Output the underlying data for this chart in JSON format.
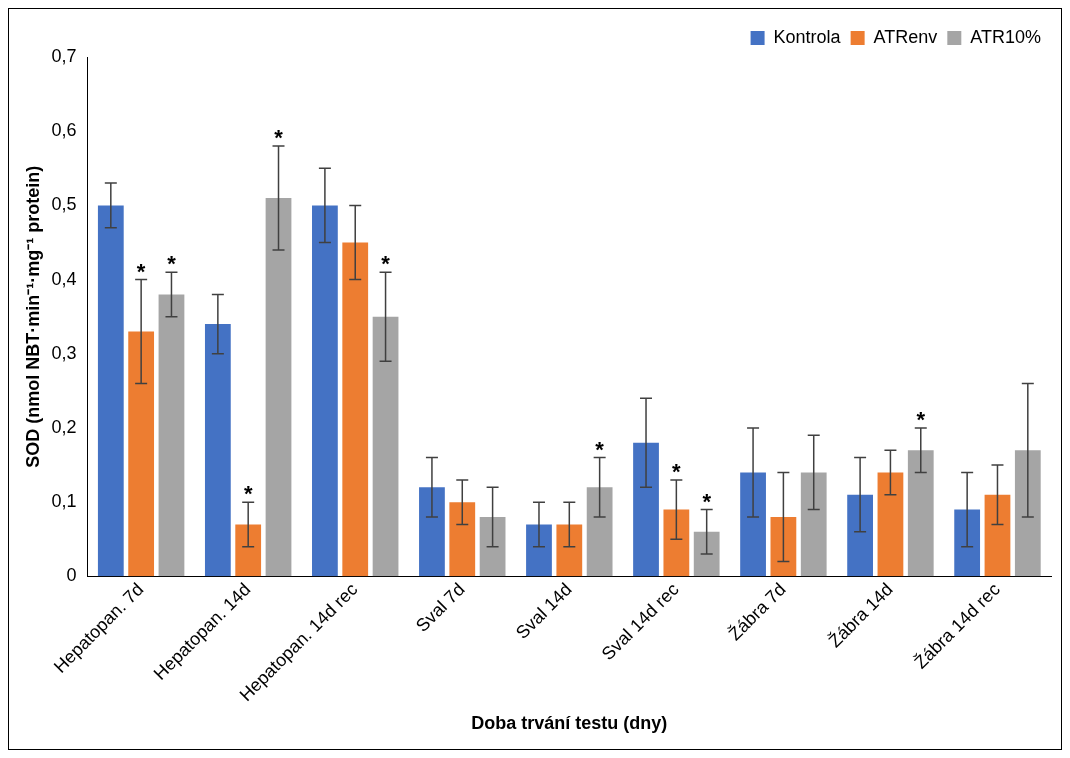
{
  "chart_data": {
    "type": "bar",
    "xlabel": "Doba trvání testu (dny)",
    "ylabel": "SOD (nmol NBT·min⁻¹·mg⁻¹ protein)",
    "categories": [
      "Hepatopan. 7d",
      "Hepatopan. 14d",
      "Hepatopan. 14d rec",
      "Sval 7d",
      "Sval 14d",
      "Sval 14d rec",
      "Žábra 7d",
      "Žábra 14d",
      "Žábra 14d rec"
    ],
    "series": [
      {
        "name": "Kontrola",
        "color": "#4472c4",
        "values": [
          0.5,
          0.34,
          0.5,
          0.12,
          0.07,
          0.18,
          0.14,
          0.11,
          0.09
        ],
        "errors": [
          0.03,
          0.04,
          0.05,
          0.04,
          0.03,
          0.06,
          0.06,
          0.05,
          0.05
        ],
        "value_labels": [
          null,
          null,
          null,
          null,
          null,
          null,
          null,
          null,
          null
        ]
      },
      {
        "name": "ATRenv",
        "color": "#ed7d31",
        "values": [
          0.33,
          0.07,
          0.45,
          0.1,
          0.07,
          0.09,
          0.08,
          0.14,
          0.11
        ],
        "errors": [
          0.07,
          0.03,
          0.05,
          0.03,
          0.03,
          0.04,
          0.06,
          0.03,
          0.04
        ],
        "value_labels": [
          "*",
          "*",
          null,
          null,
          null,
          "*",
          null,
          null,
          null
        ]
      },
      {
        "name": "ATR10%",
        "color": "#a5a5a5",
        "values": [
          0.38,
          0.51,
          0.35,
          0.08,
          0.12,
          0.06,
          0.14,
          0.17,
          0.17
        ],
        "errors": [
          0.03,
          0.07,
          0.06,
          0.04,
          0.04,
          0.03,
          0.05,
          0.03,
          0.09
        ],
        "value_labels": [
          "*",
          "*",
          "*",
          null,
          "*",
          "*",
          null,
          "*",
          null
        ]
      }
    ],
    "ylim": [
      0,
      0.7
    ],
    "yticks": [
      {
        "value": 0,
        "label": "0"
      },
      {
        "value": 0.1,
        "label": "0,1"
      },
      {
        "value": 0.2,
        "label": "0,2"
      },
      {
        "value": 0.3,
        "label": "0,3"
      },
      {
        "value": 0.4,
        "label": "0,4"
      },
      {
        "value": 0.5,
        "label": "0,5"
      },
      {
        "value": 0.6,
        "label": "0,6"
      },
      {
        "value": 0.7,
        "label": "0,7"
      }
    ],
    "grid": false,
    "legend": "top right"
  }
}
